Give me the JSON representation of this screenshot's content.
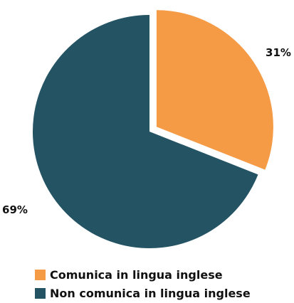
{
  "chart_data": {
    "type": "pie",
    "title": "",
    "slices": [
      {
        "name": "Comunica in lingua inglese",
        "value": 31,
        "label": "31%",
        "color": "#F59A45"
      },
      {
        "name": "Non comunica in lingua inglese",
        "value": 69,
        "label": "69%",
        "color": "#245464"
      }
    ],
    "legend_position": "bottom",
    "explode": "Comunica in lingua inglese",
    "start_angle": "12 o'clock, clockwise"
  }
}
